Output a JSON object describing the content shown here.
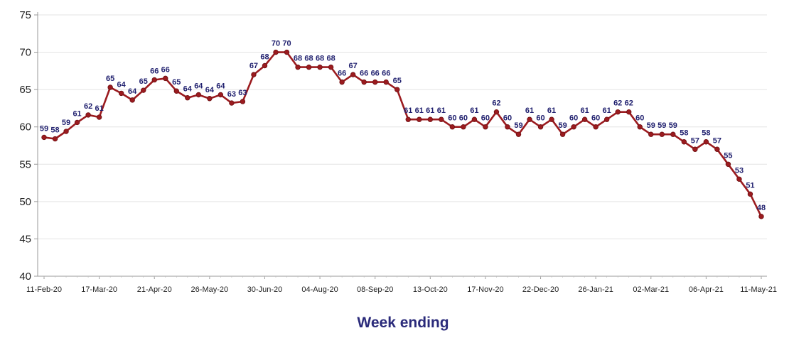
{
  "chart_data": {
    "type": "line",
    "title": "",
    "xlabel": "Week ending",
    "ylabel": "",
    "ylim": [
      40,
      75
    ],
    "yticks": [
      40,
      45,
      50,
      55,
      60,
      65,
      70,
      75
    ],
    "x_tick_labels": [
      "11-Feb-20",
      "17-Mar-20",
      "21-Apr-20",
      "26-May-20",
      "30-Jun-20",
      "04-Aug-20",
      "08-Sep-20",
      "13-Oct-20",
      "17-Nov-20",
      "22-Dec-20",
      "26-Jan-21",
      "02-Mar-21",
      "06-Apr-21",
      "11-May-21"
    ],
    "x_tick_every_weeks": 5,
    "grid": true,
    "legend": "none",
    "line_color": "#9b1b1f",
    "marker_color": "#9b1b1f",
    "label_color": "#1f1f6e",
    "series": [
      {
        "values": [
          58.6,
          58.4,
          59.4,
          60.6,
          61.6,
          61.3,
          65.3,
          64.5,
          63.6,
          64.9,
          66.3,
          66.5,
          64.8,
          63.9,
          64.3,
          63.8,
          64.3,
          63.2,
          63.4,
          67.0,
          68.2,
          70.0,
          70.0,
          68.0,
          68.0,
          68.0,
          68.0,
          66.0,
          67.0,
          66.0,
          66.0,
          66.0,
          65.0,
          61.0,
          61.0,
          61.0,
          61.0,
          60.0,
          60.0,
          61.0,
          60.0,
          62.0,
          60.0,
          59.0,
          61.0,
          60.0,
          61.0,
          59.0,
          60.0,
          61.0,
          60.0,
          61.0,
          62.0,
          62.0,
          60.0,
          59.0,
          59.0,
          59.0,
          58.0,
          57.0,
          58.0,
          57.0,
          55.0,
          53.0,
          51.0,
          48.0
        ],
        "labels": [
          59,
          58,
          59,
          61,
          62,
          61,
          65,
          64,
          64,
          65,
          66,
          66,
          65,
          64,
          64,
          64,
          64,
          63,
          63,
          67,
          68,
          70,
          70,
          68,
          68,
          68,
          68,
          66,
          67,
          66,
          66,
          66,
          65,
          61,
          61,
          61,
          61,
          60,
          60,
          61,
          60,
          62,
          60,
          59,
          61,
          60,
          61,
          59,
          60,
          61,
          60,
          61,
          62,
          62,
          60,
          59,
          59,
          59,
          58,
          57,
          58,
          57,
          55,
          53,
          51,
          48
        ]
      }
    ]
  }
}
